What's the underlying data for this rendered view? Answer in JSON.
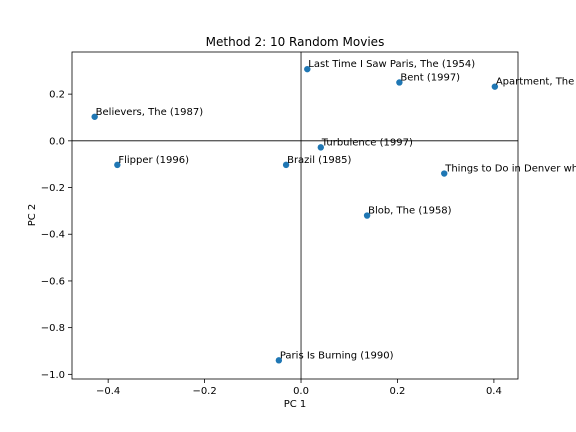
{
  "chart_data": {
    "type": "scatter",
    "title": "Method 2: 10 Random Movies",
    "xlabel": "PC 1",
    "ylabel": "PC 2",
    "xlim": [
      -0.475,
      0.45
    ],
    "ylim": [
      -1.0199,
      0.3804
    ],
    "xticks": [
      -0.4,
      -0.2,
      0.0,
      0.2,
      0.4
    ],
    "xtick_labels": [
      "−0.4",
      "−0.2",
      "0.0",
      "0.2",
      "0.4"
    ],
    "yticks": [
      -1.0,
      -0.8,
      -0.6,
      -0.4,
      -0.2,
      0.0,
      0.2
    ],
    "ytick_labels": [
      "−1.0",
      "−0.8",
      "−0.6",
      "−0.4",
      "−0.2",
      "0.0",
      "0.2"
    ],
    "grid": false,
    "reference_lines": {
      "x": 0.0,
      "y": 0.0
    },
    "marker_color": "#1f77b4",
    "points": [
      {
        "label": "Last Time I Saw Paris, The (1954)",
        "x": 0.013,
        "y": 0.307
      },
      {
        "label": "Bent (1997)",
        "x": 0.204,
        "y": 0.25
      },
      {
        "label": "Apartment, The",
        "x": 0.402,
        "y": 0.232
      },
      {
        "label": "Believers, The (1987)",
        "x": -0.428,
        "y": 0.103
      },
      {
        "label": "Turbulence (1997)",
        "x": 0.041,
        "y": -0.028
      },
      {
        "label": "Flipper (1996)",
        "x": -0.381,
        "y": -0.103
      },
      {
        "label": "Brazil (1985)",
        "x": -0.031,
        "y": -0.103
      },
      {
        "label": "Things to Do in Denver wh",
        "x": 0.297,
        "y": -0.14
      },
      {
        "label": "Blob, The (1958)",
        "x": 0.137,
        "y": -0.32
      },
      {
        "label": "Paris Is Burning (1990)",
        "x": -0.046,
        "y": -0.94
      }
    ]
  }
}
